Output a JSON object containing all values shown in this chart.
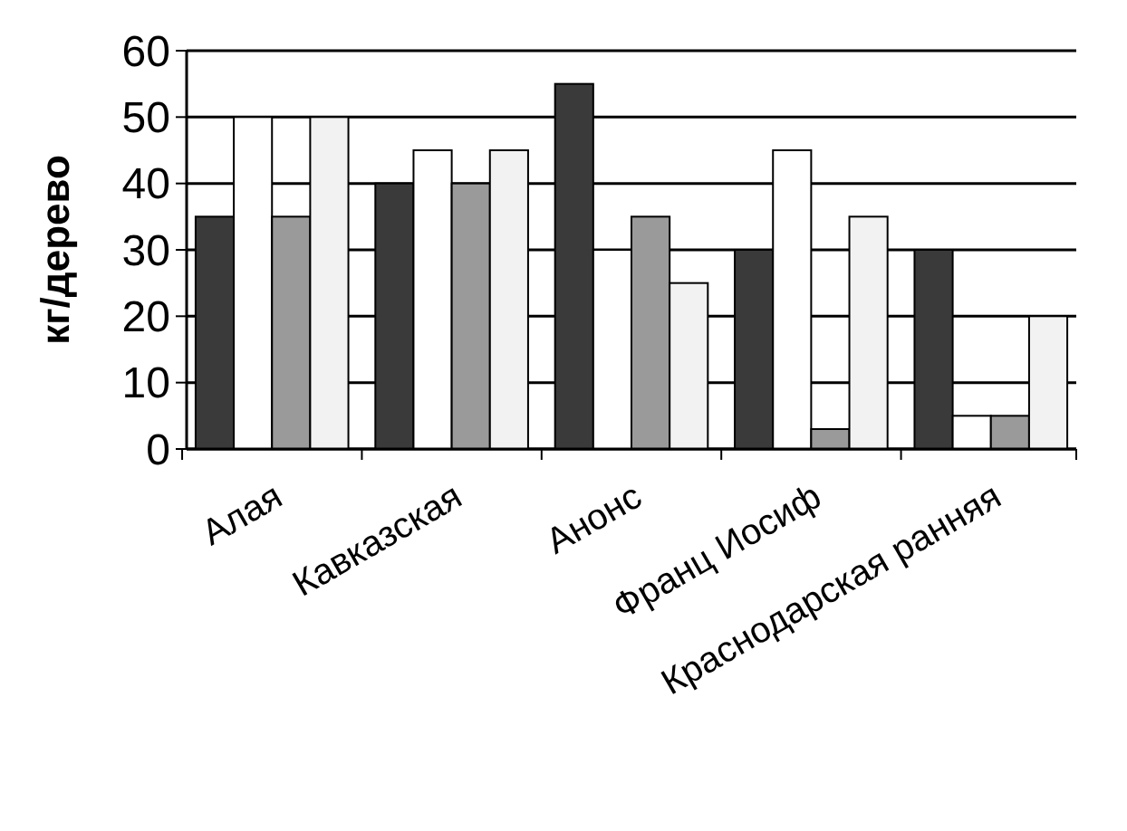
{
  "chart_data": {
    "type": "bar",
    "ylabel": "кг/дерево",
    "categories": [
      "Алая",
      "Кавказская",
      "Анонс",
      "Франц Иосиф",
      "Краснодарская ранняя"
    ],
    "series": [
      {
        "color": "#3a3a3a",
        "values": [
          35,
          40,
          55,
          30,
          30
        ]
      },
      {
        "color": "#ffffff",
        "values": [
          50,
          45,
          30,
          45,
          5
        ]
      },
      {
        "color": "#9a9a9a",
        "values": [
          35,
          40,
          35,
          3,
          5
        ]
      },
      {
        "color": "#f2f2f2",
        "values": [
          50,
          45,
          25,
          35,
          20
        ]
      }
    ],
    "ylim": [
      0,
      60
    ],
    "yticks": [
      0,
      10,
      20,
      30,
      40,
      50,
      60
    ],
    "grid": "y"
  }
}
